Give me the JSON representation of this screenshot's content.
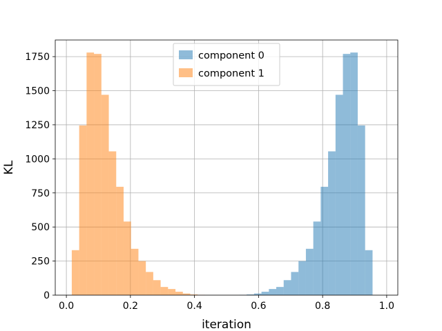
{
  "chart_data": {
    "type": "bar",
    "xlabel": "iteration",
    "ylabel": "KL",
    "xlim": [
      -0.0347,
      1.0347
    ],
    "ylim": [
      0,
      1872
    ],
    "xticks": [
      0.0,
      0.2,
      0.4,
      0.6,
      0.8,
      1.0
    ],
    "xtick_labels": [
      "0.0",
      "0.2",
      "0.4",
      "0.6",
      "0.8",
      "1.0"
    ],
    "yticks": [
      0,
      250,
      500,
      750,
      1000,
      1250,
      1500,
      1750
    ],
    "ytick_labels": [
      "0",
      "250",
      "500",
      "750",
      "1000",
      "1250",
      "1500",
      "1750"
    ],
    "grid": true,
    "legend_position": "top-center",
    "series": [
      {
        "name": "component 0",
        "color": "#1f77b4",
        "alpha": 0.5,
        "bin_edges": [
          0.5397,
          0.5628,
          0.5859,
          0.6091,
          0.6322,
          0.6553,
          0.6784,
          0.7015,
          0.7247,
          0.7478,
          0.7709,
          0.794,
          0.8171,
          0.8403,
          0.8634,
          0.8865,
          0.9096,
          0.9327,
          0.9559,
          0.979
        ],
        "values": [
          2,
          5,
          12,
          25,
          45,
          60,
          110,
          170,
          250,
          340,
          540,
          795,
          1055,
          1470,
          1770,
          1780,
          1245,
          330,
          0
        ]
      },
      {
        "name": "component 1",
        "color": "#ff7f0e",
        "alpha": 0.5,
        "bin_edges": [
          0.0169,
          0.04,
          0.0631,
          0.0862,
          0.1094,
          0.1325,
          0.1556,
          0.1787,
          0.2018,
          0.225,
          0.2481,
          0.2712,
          0.2943,
          0.3174,
          0.3406,
          0.3637,
          0.3868,
          0.4099,
          0.433,
          0.4562
        ],
        "values": [
          330,
          1245,
          1780,
          1770,
          1470,
          1055,
          795,
          540,
          340,
          250,
          170,
          110,
          60,
          45,
          25,
          12,
          5,
          2,
          0
        ]
      }
    ]
  }
}
